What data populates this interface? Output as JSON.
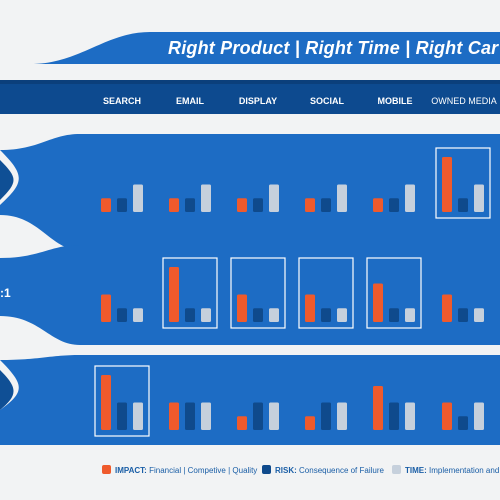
{
  "header": {
    "title_parts": [
      "Right Product",
      "Right Time",
      "Right Car"
    ],
    "title_separator": "|"
  },
  "channels": [
    "SEARCH",
    "EMAIL",
    "DISPLAY",
    "SOCIAL",
    "MOBILE",
    "OWNED MEDIA"
  ],
  "row_labels": [
    "",
    ":1",
    ""
  ],
  "colors": {
    "band": "#1d6cc4",
    "band_dark": "#0f4f95",
    "nav_bar": "#0d4a8f",
    "impact": "#ef5a2c",
    "risk": "#0f4a8c",
    "time": "#c6d0dc",
    "highlight_border": "#ffffff"
  },
  "legend": [
    {
      "key": "IMPACT:",
      "text": "Financial | Competive | Quality",
      "color": "#ef5a2c"
    },
    {
      "key": "RISK:",
      "text": "Consequence of Failure",
      "color": "#0f4a8c"
    },
    {
      "key": "TIME:",
      "text": "Implementation and",
      "color": "#c6d0dc"
    }
  ],
  "chart_data": [
    {
      "type": "bar",
      "series_order": [
        "impact",
        "risk",
        "time"
      ],
      "categories": [
        "SEARCH",
        "EMAIL",
        "DISPLAY",
        "SOCIAL",
        "MOBILE",
        "OWNED MEDIA"
      ],
      "ylim": [
        0,
        10
      ],
      "series": [
        {
          "name": "IMPACT",
          "values": [
            2.5,
            2.5,
            2.5,
            2.5,
            2.5,
            10
          ]
        },
        {
          "name": "RISK",
          "values": [
            2.5,
            2.5,
            2.5,
            2.5,
            2.5,
            2.5
          ]
        },
        {
          "name": "TIME",
          "values": [
            5,
            5,
            5,
            5,
            5,
            5
          ]
        }
      ],
      "highlighted": [
        "OWNED MEDIA"
      ]
    },
    {
      "type": "bar",
      "series_order": [
        "impact",
        "risk",
        "time"
      ],
      "categories": [
        "SEARCH",
        "EMAIL",
        "DISPLAY",
        "SOCIAL",
        "MOBILE",
        "OWNED MEDIA"
      ],
      "ylim": [
        0,
        10
      ],
      "series": [
        {
          "name": "IMPACT",
          "values": [
            5,
            10,
            5,
            5,
            7,
            5
          ]
        },
        {
          "name": "RISK",
          "values": [
            2.5,
            2.5,
            2.5,
            2.5,
            2.5,
            2.5
          ]
        },
        {
          "name": "TIME",
          "values": [
            2.5,
            2.5,
            2.5,
            2.5,
            2.5,
            2.5
          ]
        }
      ],
      "highlighted": [
        "EMAIL",
        "DISPLAY",
        "SOCIAL",
        "MOBILE"
      ]
    },
    {
      "type": "bar",
      "series_order": [
        "impact",
        "risk",
        "time"
      ],
      "categories": [
        "SEARCH",
        "EMAIL",
        "DISPLAY",
        "SOCIAL",
        "MOBILE",
        "OWNED MEDIA"
      ],
      "ylim": [
        0,
        10
      ],
      "series": [
        {
          "name": "IMPACT",
          "values": [
            10,
            5,
            2.5,
            2.5,
            8,
            5
          ]
        },
        {
          "name": "RISK",
          "values": [
            5,
            5,
            5,
            5,
            5,
            2.5
          ]
        },
        {
          "name": "TIME",
          "values": [
            5,
            5,
            5,
            5,
            5,
            5
          ]
        }
      ],
      "highlighted": [
        "SEARCH"
      ]
    }
  ]
}
